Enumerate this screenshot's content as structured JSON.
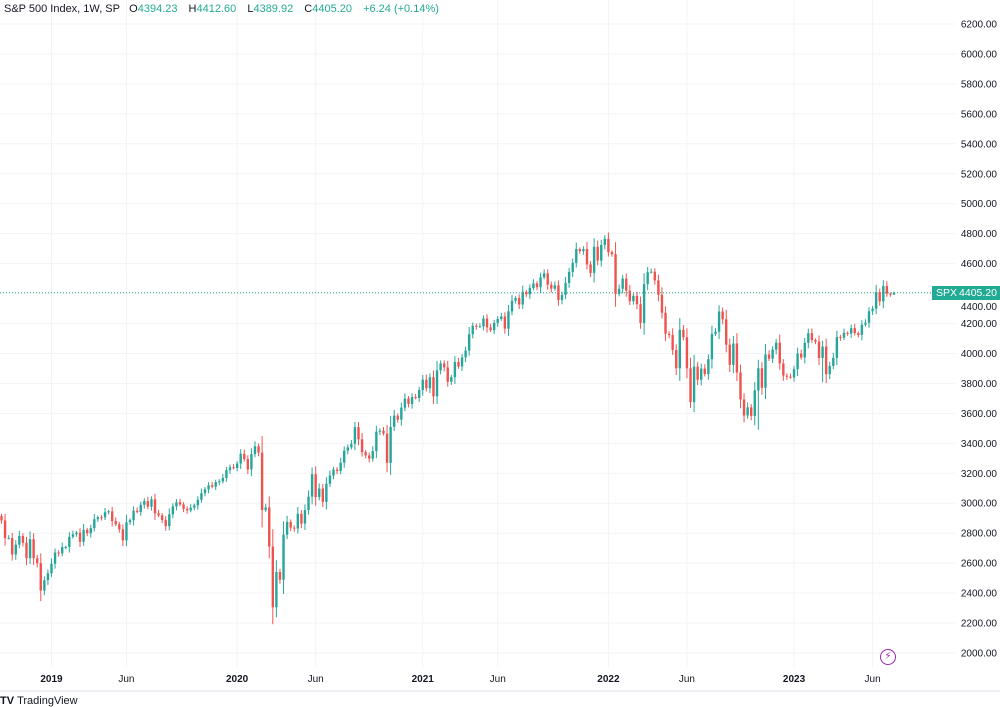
{
  "legend": {
    "symbol_title": "S&P 500 Index, 1W, SP",
    "open_label": "O",
    "open": "4394.23",
    "high_label": "H",
    "high": "4412.60",
    "low_label": "L",
    "low": "4389.92",
    "close_label": "C",
    "close": "4405.20",
    "change": "+6.24 (+0.14%)"
  },
  "price_tag": {
    "symbol": "SPX",
    "value": "4405.20"
  },
  "footer": {
    "brand": "TradingView"
  },
  "icons": {
    "logo": "tradingview-logo-icon",
    "bolt": "lightning-icon"
  },
  "colors": {
    "up": "#26a69a",
    "down": "#ef5350",
    "tag": "#22ab94",
    "bolt": "#9c27b0"
  },
  "chart_data": {
    "type": "candlestick",
    "title": "S&P 500 Index, 1W, SP",
    "interval": "1W",
    "first_week": "2018-10-01",
    "ylim": [
      2000,
      6200
    ],
    "y_ticks": [
      "2000.00",
      "2200.00",
      "2400.00",
      "2600.00",
      "2800.00",
      "3000.00",
      "3200.00",
      "3400.00",
      "3600.00",
      "3800.00",
      "4000.00",
      "4200.00",
      "4400.00",
      "4600.00",
      "4800.00",
      "5000.00",
      "5200.00",
      "5400.00",
      "5600.00",
      "5800.00",
      "6000.00",
      "6200.00"
    ],
    "x_ticks": [
      {
        "label": "2019",
        "week": 14
      },
      {
        "label": "Jun",
        "week": 35
      },
      {
        "label": "2020",
        "week": 66
      },
      {
        "label": "Jun",
        "week": 88
      },
      {
        "label": "2021",
        "week": 118
      },
      {
        "label": "Jun",
        "week": 139
      },
      {
        "label": "2022",
        "week": 170
      },
      {
        "label": "Jun",
        "week": 192
      },
      {
        "label": "2023",
        "week": 222
      },
      {
        "label": "Jun",
        "week": 244
      }
    ],
    "last_price": 4405.2,
    "last_candle": {
      "open": 4394.23,
      "high": 4412.6,
      "low": 4389.92,
      "close": 4405.2
    },
    "weekly_close": [
      2885,
      2767,
      2767,
      2658,
      2723,
      2781,
      2736,
      2633,
      2760,
      2633,
      2600,
      2417,
      2486,
      2532,
      2596,
      2671,
      2665,
      2707,
      2708,
      2776,
      2793,
      2804,
      2743,
      2822,
      2800,
      2834,
      2893,
      2907,
      2905,
      2940,
      2946,
      2881,
      2860,
      2826,
      2752,
      2873,
      2887,
      2950,
      2942,
      2990,
      3014,
      2977,
      3026,
      2932,
      2919,
      2889,
      2847,
      2926,
      2979,
      3007,
      2992,
      2962,
      2952,
      2970,
      2986,
      3023,
      3067,
      3093,
      3120,
      3110,
      3141,
      3146,
      3169,
      3221,
      3240,
      3235,
      3265,
      3330,
      3295,
      3226,
      3328,
      3380,
      3338,
      2954,
      2972,
      2711,
      2305,
      2541,
      2489,
      2790,
      2875,
      2837,
      2831,
      2930,
      2864,
      2955,
      3044,
      3194,
      3041,
      3098,
      3009,
      3130,
      3185,
      3225,
      3216,
      3271,
      3351,
      3373,
      3397,
      3508,
      3427,
      3341,
      3319,
      3298,
      3348,
      3477,
      3484,
      3465,
      3270,
      3510,
      3585,
      3558,
      3638,
      3699,
      3663,
      3709,
      3703,
      3756,
      3825,
      3768,
      3841,
      3714,
      3887,
      3934,
      3907,
      3811,
      3842,
      3943,
      3913,
      3974,
      4020,
      4129,
      4185,
      4180,
      4181,
      4233,
      4174,
      4156,
      4204,
      4230,
      4247,
      4166,
      4281,
      4352,
      4370,
      4327,
      4412,
      4395,
      4437,
      4468,
      4442,
      4509,
      4535,
      4459,
      4433,
      4455,
      4357,
      4391,
      4471,
      4545,
      4605,
      4697,
      4683,
      4698,
      4595,
      4538,
      4712,
      4620,
      4725,
      4766,
      4677,
      4663,
      4398,
      4432,
      4500,
      4419,
      4349,
      4385,
      4329,
      4204,
      4463,
      4543,
      4546,
      4488,
      4392,
      4272,
      4132,
      4123,
      4023,
      3901,
      4158,
      4108,
      3901,
      3675,
      3912,
      3825,
      3899,
      3863,
      3962,
      4130,
      4145,
      4280,
      4228,
      4058,
      3924,
      4067,
      3873,
      3693,
      3586,
      3640,
      3583,
      3753,
      3901,
      3771,
      3993,
      3965,
      4026,
      4072,
      3934,
      3852,
      3845,
      3840,
      3895,
      3999,
      3973,
      4071,
      4136,
      4090,
      4079,
      3970,
      4046,
      3862,
      3917,
      3971,
      4109,
      4105,
      4138,
      4133,
      4169,
      4136,
      4124,
      4192,
      4205,
      4282,
      4299,
      4410,
      4348,
      4450,
      4399,
      4394.23
    ],
    "weekly_low_overrides": {
      "11": 2346,
      "76": 2192,
      "193": 3637,
      "212": 3491,
      "230": 3808
    },
    "grid": true
  }
}
